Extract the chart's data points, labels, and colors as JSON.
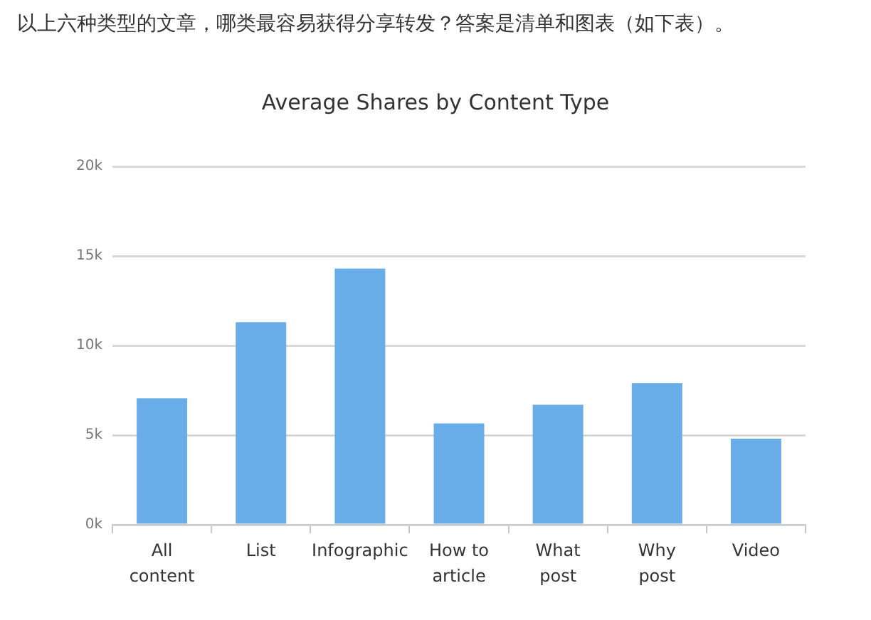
{
  "chart_data": {
    "type": "bar",
    "title": "Average Shares by Content Type",
    "annotations": [
      "以上六种类型的文章，哪类最容易获得分享转发？答案是清单和图表（如下表）。"
    ],
    "categories": [
      "All content",
      "List",
      "Infographic",
      "How to article",
      "What post",
      "Why post",
      "Video"
    ],
    "values": [
      7050,
      11300,
      14300,
      5650,
      6700,
      7900,
      4800
    ],
    "color": "#68ade8",
    "ylim": [
      0,
      20000
    ],
    "yticks": [
      {
        "value": 0,
        "label": "0k"
      },
      {
        "value": 5000,
        "label": "5k"
      },
      {
        "value": 10000,
        "label": "10k"
      },
      {
        "value": 15000,
        "label": "15k"
      },
      {
        "value": 20000,
        "label": "20k"
      }
    ],
    "grid": "y"
  }
}
